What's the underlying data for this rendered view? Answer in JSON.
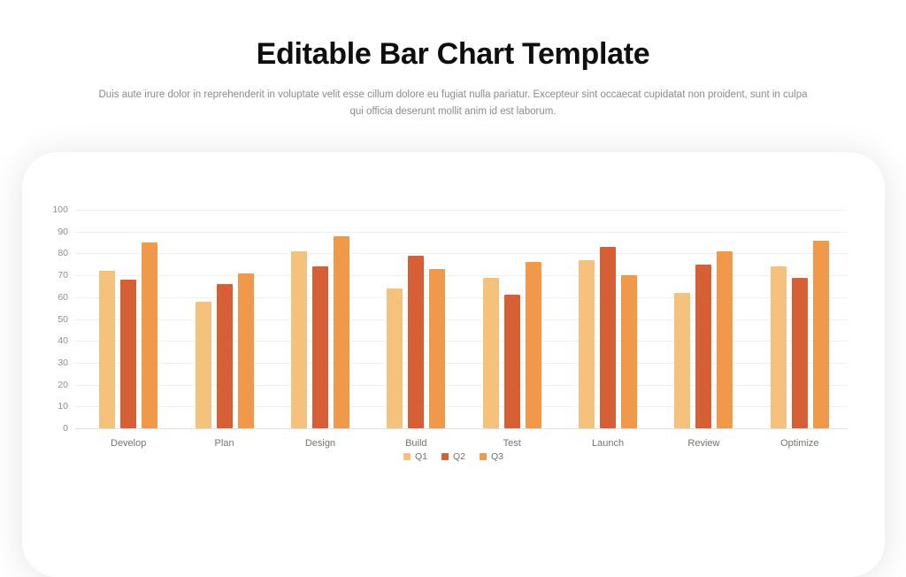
{
  "header": {
    "title": "Editable Bar Chart Template",
    "subtitle_lines": [
      "Duis aute irure dolor in reprehenderit in voluptate velit esse cillum dolore eu fugiat nulla pariatur. Excepteur sint occaecat cupidatat non proident, sunt in culpa",
      "qui officia deserunt mollit anim id est laborum."
    ]
  },
  "chart_data": {
    "type": "bar",
    "title": "",
    "xlabel": "",
    "ylabel": "",
    "categories": [
      "Develop",
      "Plan",
      "Design",
      "Build",
      "Test",
      "Launch",
      "Review",
      "Optimize"
    ],
    "series": [
      {
        "name": "Q1",
        "color": "#F4C27C",
        "values": [
          72,
          58,
          81,
          64,
          69,
          77,
          62,
          74
        ]
      },
      {
        "name": "Q2",
        "color": "#D65F35",
        "values": [
          68,
          66,
          74,
          79,
          61,
          83,
          75,
          69
        ]
      },
      {
        "name": "Q3",
        "color": "#F0994A",
        "values": [
          85,
          71,
          88,
          73,
          76,
          70,
          81,
          86
        ]
      }
    ],
    "ylim": [
      0,
      100
    ],
    "yticks": [
      0,
      10,
      20,
      30,
      40,
      50,
      60,
      70,
      80,
      90,
      100
    ],
    "grid": true,
    "legend_position": "bottom"
  },
  "colors": {
    "title_text": "#0f0f0f",
    "subtitle_text": "#8c8c8c",
    "axis_text": "#8f8f8f",
    "category_text": "#757575",
    "gridline": "#f1f1f1",
    "baseline": "#e0e0e0",
    "card_background": "#ffffff"
  }
}
